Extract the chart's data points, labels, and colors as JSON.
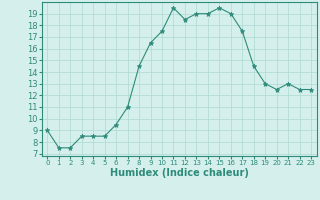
{
  "x": [
    0,
    1,
    2,
    3,
    4,
    5,
    6,
    7,
    8,
    9,
    10,
    11,
    12,
    13,
    14,
    15,
    16,
    17,
    18,
    19,
    20,
    21,
    22,
    23
  ],
  "y": [
    9.0,
    7.5,
    7.5,
    8.5,
    8.5,
    8.5,
    9.5,
    11.0,
    14.5,
    16.5,
    17.5,
    19.5,
    18.5,
    19.0,
    19.0,
    19.5,
    19.0,
    17.5,
    14.5,
    13.0,
    12.5,
    13.0,
    12.5,
    12.5
  ],
  "xlabel": "Humidex (Indice chaleur)",
  "xlim": [
    -0.5,
    23.5
  ],
  "ylim": [
    6.8,
    20.0
  ],
  "yticks": [
    7,
    8,
    9,
    10,
    11,
    12,
    13,
    14,
    15,
    16,
    17,
    18,
    19
  ],
  "xticks": [
    0,
    1,
    2,
    3,
    4,
    5,
    6,
    7,
    8,
    9,
    10,
    11,
    12,
    13,
    14,
    15,
    16,
    17,
    18,
    19,
    20,
    21,
    22,
    23
  ],
  "line_color": "#2e8b7a",
  "marker_color": "#2e8b7a",
  "bg_color": "#d5f0ec",
  "grid_color": "#aed8d2",
  "axis_fontsize": 7,
  "tick_fontsize": 6
}
